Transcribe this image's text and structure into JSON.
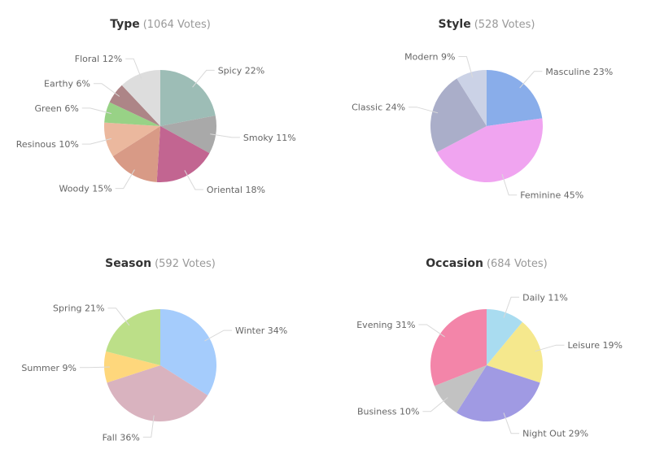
{
  "chart_data": [
    {
      "type": "pie",
      "title": "Type",
      "subtitle": "(1064 Votes)",
      "slices": [
        {
          "label": "Spicy 22%",
          "value": 22,
          "color": "#9dbdb6"
        },
        {
          "label": "Smoky 11%",
          "value": 11,
          "color": "#a9a9a9"
        },
        {
          "label": "Oriental 18%",
          "value": 18,
          "color": "#c26591"
        },
        {
          "label": "Woody 15%",
          "value": 15,
          "color": "#d89a86"
        },
        {
          "label": "Resinous 10%",
          "value": 10,
          "color": "#ebb89e"
        },
        {
          "label": "Green 6%",
          "value": 6,
          "color": "#98d286"
        },
        {
          "label": "Earthy 6%",
          "value": 6,
          "color": "#ad8587"
        },
        {
          "label": "Floral 12%",
          "value": 12,
          "color": "#dddddd"
        }
      ]
    },
    {
      "type": "pie",
      "title": "Style",
      "subtitle": "(528 Votes)",
      "slices": [
        {
          "label": "Masculine 23%",
          "value": 23,
          "color": "#89adea"
        },
        {
          "label": "Feminine 45%",
          "value": 45,
          "color": "#f0a4f0"
        },
        {
          "label": "Classic 24%",
          "value": 24,
          "color": "#aaaec9"
        },
        {
          "label": "Modern 9%",
          "value": 9,
          "color": "#cbd2e6"
        }
      ]
    },
    {
      "type": "pie",
      "title": "Season",
      "subtitle": "(592 Votes)",
      "slices": [
        {
          "label": "Winter 34%",
          "value": 34,
          "color": "#a5ccfc"
        },
        {
          "label": "Fall 36%",
          "value": 36,
          "color": "#d9b3bf"
        },
        {
          "label": "Summer 9%",
          "value": 9,
          "color": "#fed77c"
        },
        {
          "label": "Spring 21%",
          "value": 21,
          "color": "#bcdf88"
        }
      ]
    },
    {
      "type": "pie",
      "title": "Occasion",
      "subtitle": "(684 Votes)",
      "slices": [
        {
          "label": "Daily 11%",
          "value": 11,
          "color": "#a9dcf0"
        },
        {
          "label": "Leisure 19%",
          "value": 19,
          "color": "#f5e88d"
        },
        {
          "label": "Night Out 29%",
          "value": 29,
          "color": "#a09ae3"
        },
        {
          "label": "Business 10%",
          "value": 10,
          "color": "#c2c2c2"
        },
        {
          "label": "Evening 31%",
          "value": 31,
          "color": "#f385a9"
        }
      ]
    }
  ]
}
